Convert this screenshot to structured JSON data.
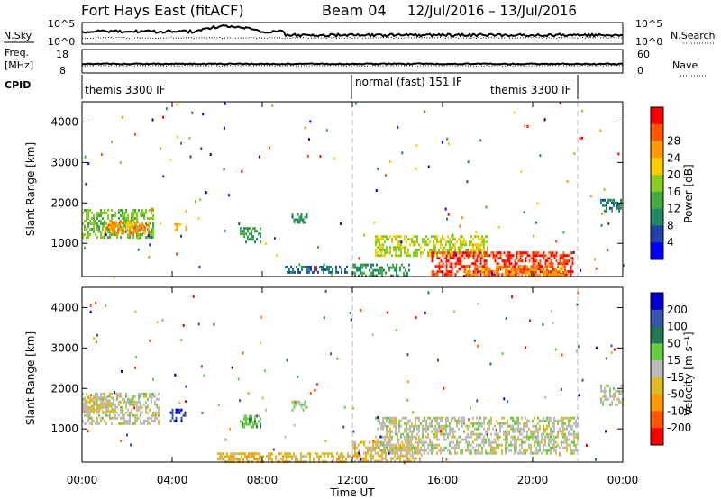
{
  "header": {
    "station": "Fort Hays East (fitACF)",
    "beam": "Beam 04",
    "date_range": "12/Jul/2016 – 13/Jul/2016"
  },
  "noise_panel": {
    "left_label": "N.Sky",
    "left_ticks": [
      "10^5",
      "10^0"
    ],
    "right_ticks": [
      "10^5",
      "10^0"
    ],
    "right_label": "N.Search"
  },
  "freq_panel": {
    "left_label_1": "Freq.",
    "left_label_2": "[MHz]",
    "left_ticks": [
      "18",
      "8"
    ],
    "right_ticks": [
      "60",
      "0"
    ],
    "right_label": "Nave"
  },
  "cpid_panel": {
    "label": "CPID",
    "segments": [
      {
        "start_ut": 0,
        "label": "themis 3300 IF"
      },
      {
        "start_ut": 12,
        "label": "normal (fast) 151 IF"
      },
      {
        "start_ut": 22,
        "label": "themis 3300 IF"
      }
    ]
  },
  "colors": {
    "power_scale": [
      "#0000ff",
      "#2244aa",
      "#228866",
      "#44aa44",
      "#88cc22",
      "#ffcc00",
      "#ff9900",
      "#ff5500",
      "#ff0000"
    ],
    "velocity_scale": [
      "#0000cc",
      "#3355aa",
      "#227755",
      "#66cc44",
      "#bbbbbb",
      "#ddbb22",
      "#ff9900",
      "#ff5500",
      "#ff0000"
    ]
  },
  "chart_data": [
    {
      "type": "heatmap",
      "name_key": "power",
      "ylabel": "Slant Range [km]",
      "yticks": [
        1000,
        2000,
        3000,
        4000
      ],
      "ylim": [
        180,
        4500
      ],
      "xlim": [
        0,
        24
      ],
      "colorbar_label": "Power [dB]",
      "colorbar_ticks": [
        "4",
        "8",
        "12",
        "16",
        "20",
        "24",
        "28"
      ],
      "clim": [
        0,
        30
      ],
      "regions": [
        {
          "ut": [
            0.0,
            3.2
          ],
          "range": [
            1150,
            1850
          ],
          "value": 14
        },
        {
          "ut": [
            1.0,
            3.0
          ],
          "range": [
            1250,
            1550
          ],
          "value": 22
        },
        {
          "ut": [
            4.1,
            4.6
          ],
          "range": [
            1300,
            1500
          ],
          "value": 20
        },
        {
          "ut": [
            7.0,
            7.9
          ],
          "range": [
            1050,
            1400
          ],
          "value": 10
        },
        {
          "ut": [
            9.3,
            10.0
          ],
          "range": [
            1500,
            1750
          ],
          "value": 9
        },
        {
          "ut": [
            9.0,
            11.8
          ],
          "range": [
            250,
            450
          ],
          "value": 7
        },
        {
          "ut": [
            12.0,
            14.5
          ],
          "range": [
            200,
            500
          ],
          "value": 10
        },
        {
          "ut": [
            13.0,
            18.0
          ],
          "range": [
            700,
            1200
          ],
          "value": 16
        },
        {
          "ut": [
            15.5,
            21.8
          ],
          "range": [
            250,
            800
          ],
          "value": 27
        },
        {
          "ut": [
            17.0,
            21.5
          ],
          "range": [
            200,
            450
          ],
          "value": 22
        },
        {
          "ut": [
            23.0,
            23.9
          ],
          "range": [
            1800,
            2100
          ],
          "value": 8
        }
      ]
    },
    {
      "type": "heatmap",
      "name_key": "velocity",
      "ylabel": "Slant Range [km]",
      "yticks": [
        1000,
        2000,
        3000,
        4000
      ],
      "ylim": [
        180,
        4500
      ],
      "xlim": [
        0,
        24
      ],
      "colorbar_label": "Velocity [m s⁻¹]",
      "colorbar_ticks": [
        "200",
        "100",
        "50",
        "15",
        "-15",
        "-50",
        "-100",
        "-200"
      ],
      "clim": [
        -250,
        250
      ],
      "regions": [
        {
          "ut": [
            0.0,
            3.4
          ],
          "range": [
            1100,
            1900
          ],
          "value": 0
        },
        {
          "ut": [
            0.0,
            1.5
          ],
          "range": [
            1400,
            1800
          ],
          "value": -40
        },
        {
          "ut": [
            3.9,
            4.6
          ],
          "range": [
            1200,
            1500
          ],
          "value": 180
        },
        {
          "ut": [
            7.0,
            7.9
          ],
          "range": [
            1050,
            1350
          ],
          "value": 60
        },
        {
          "ut": [
            9.3,
            10.0
          ],
          "range": [
            1450,
            1700
          ],
          "value": 40
        },
        {
          "ut": [
            6.0,
            12.0
          ],
          "range": [
            200,
            420
          ],
          "value": -60
        },
        {
          "ut": [
            12.0,
            15.0
          ],
          "range": [
            200,
            700
          ],
          "value": -50
        },
        {
          "ut": [
            13.0,
            22.0
          ],
          "range": [
            400,
            1300
          ],
          "value": 0
        },
        {
          "ut": [
            23.0,
            24.0
          ],
          "range": [
            1600,
            2100
          ],
          "value": 0
        }
      ]
    }
  ],
  "xaxis": {
    "ticks": [
      "00:00",
      "04:00",
      "08:00",
      "12:00",
      "16:00",
      "20:00",
      "00:00"
    ],
    "label": "Time UT"
  }
}
